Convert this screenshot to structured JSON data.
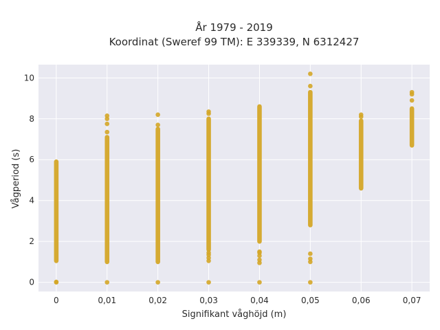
{
  "chart_data": {
    "type": "scatter",
    "title": "År 1979 - 2019",
    "subtitle": "Koordinat (Sweref 99 TM): E 339339, N 6312427",
    "xlabel": "Signifikant våghöjd (m)",
    "ylabel": "Vågperiod (s)",
    "x_ticks": [
      "0",
      "0,01",
      "0,02",
      "0,03",
      "0,04",
      "0,05",
      "0,06",
      "0,07"
    ],
    "x_values": [
      0,
      0.01,
      0.02,
      0.03,
      0.04,
      0.05,
      0.06,
      0.07
    ],
    "y_ticks": [
      "0",
      "2",
      "4",
      "6",
      "8",
      "10"
    ],
    "y_tick_values": [
      0,
      2,
      4,
      6,
      8,
      10
    ],
    "xlim": [
      -0.0035,
      0.0735
    ],
    "ylim": [
      -0.45,
      10.65
    ],
    "grid": true,
    "point_color": "#d4a627",
    "background_color": "#e9e9f1",
    "grid_color": "#ffffff",
    "columns": [
      {
        "x": 0,
        "ranges": [
          [
            1.05,
            5.9
          ]
        ],
        "points": [
          0,
          0.02
        ]
      },
      {
        "x": 0.01,
        "ranges": [
          [
            1.0,
            7.1
          ]
        ],
        "points": [
          0,
          7.35,
          7.75,
          8.0,
          8.15
        ]
      },
      {
        "x": 0.02,
        "ranges": [
          [
            1.0,
            7.5
          ]
        ],
        "points": [
          0,
          7.7,
          8.2
        ]
      },
      {
        "x": 0.03,
        "ranges": [
          [
            1.6,
            8.0
          ]
        ],
        "points": [
          0,
          1.05,
          1.2,
          1.35,
          1.45,
          8.25,
          8.35
        ]
      },
      {
        "x": 0.04,
        "ranges": [
          [
            2.0,
            8.6
          ]
        ],
        "points": [
          0,
          0.95,
          1.1,
          1.3,
          1.45,
          1.5
        ]
      },
      {
        "x": 0.05,
        "ranges": [
          [
            2.8,
            9.3
          ]
        ],
        "points": [
          0,
          1.0,
          1.15,
          1.4,
          9.6,
          10.2
        ]
      },
      {
        "x": 0.06,
        "ranges": [
          [
            4.6,
            7.9
          ]
        ],
        "points": [
          8.1,
          8.2
        ]
      },
      {
        "x": 0.07,
        "ranges": [
          [
            6.7,
            8.5
          ]
        ],
        "points": [
          8.9,
          9.2,
          9.3
        ]
      }
    ]
  }
}
